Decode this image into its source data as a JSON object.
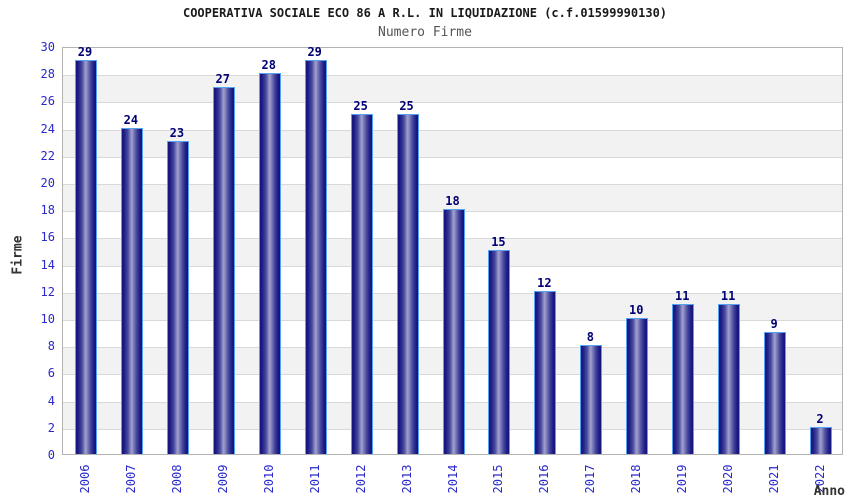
{
  "chart_data": {
    "type": "bar",
    "title": "COOPERATIVA SOCIALE ECO 86 A R.L. IN LIQUIDAZIONE (c.f.01599990130)",
    "subtitle": "Numero Firme",
    "xlabel": "Anno",
    "ylabel": "Firme",
    "categories": [
      "2006",
      "2007",
      "2008",
      "2009",
      "2010",
      "2011",
      "2012",
      "2013",
      "2014",
      "2015",
      "2016",
      "2017",
      "2018",
      "2019",
      "2020",
      "2021",
      "2022"
    ],
    "values": [
      29,
      24,
      23,
      27,
      28,
      29,
      25,
      25,
      18,
      15,
      12,
      8,
      10,
      11,
      11,
      9,
      2
    ],
    "ylim": [
      0,
      30
    ],
    "ytick_step": 2,
    "grid": true,
    "legend_position": "none",
    "band_colors": [
      "#ffffff",
      "#f2f2f2"
    ],
    "colors": {
      "bar_edge": "#14147a",
      "bar_dark": "#1c1c86",
      "bar_mid_dark": "#4a4aa0",
      "bar_highlight": "#a2a2ce",
      "bar_outline": "#55a2f0",
      "tick_label": "#2929cc",
      "value_label": "#000075",
      "title": "#1a1a1a",
      "subtitle": "#555555",
      "axis_title": "#333333",
      "gridline": "#d9d9d9",
      "plot_border": "#b3b3b3"
    }
  }
}
